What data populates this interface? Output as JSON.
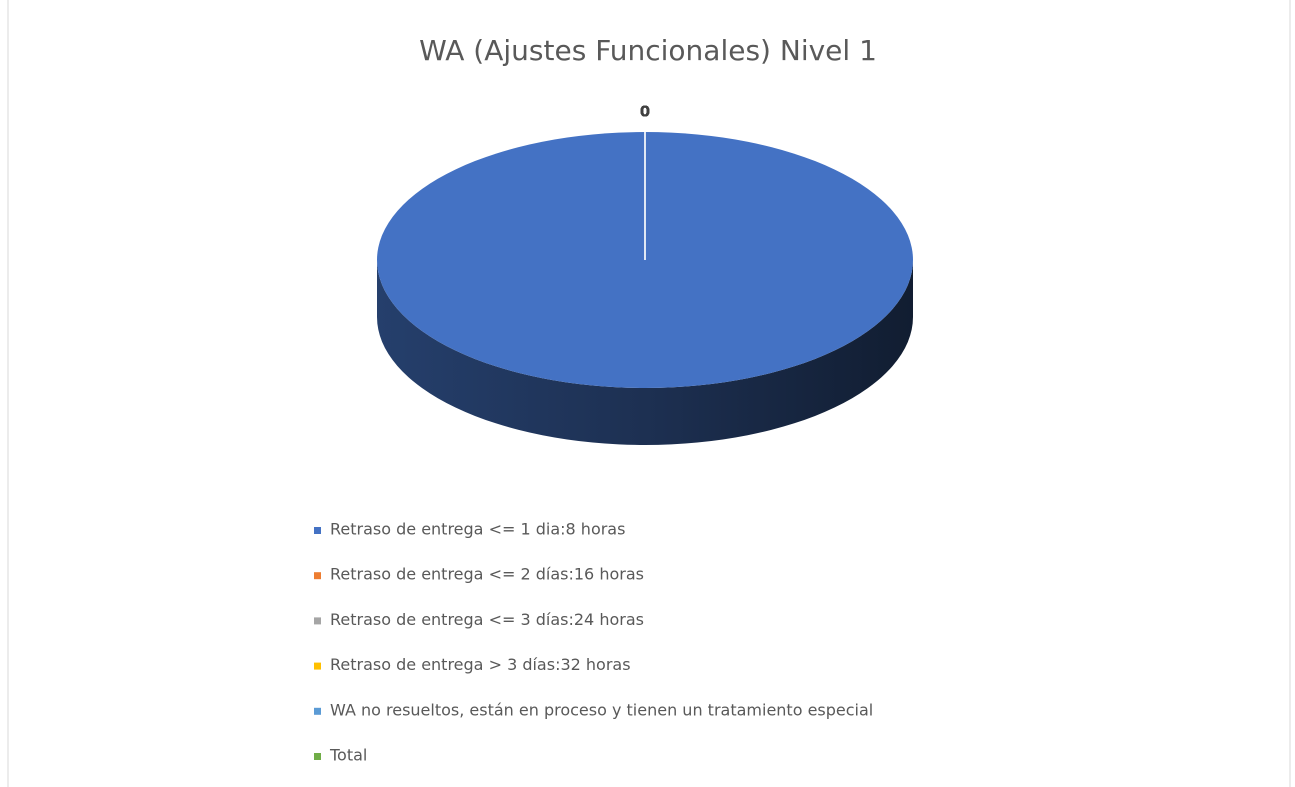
{
  "chart_data": {
    "type": "pie3d",
    "title": "WA (Ajustes Funcionales) Nivel 1",
    "series": [
      {
        "name": " Retraso de entrega <= 1 dia:8 horas",
        "color": "#4472c4",
        "values": [
          100
        ]
      },
      {
        "name": "Retraso de entrega <= 2 días:16 horas",
        "color": "#ed7d31",
        "values": [
          0
        ]
      },
      {
        "name": "Retraso de entrega <= 3 días:24 horas",
        "color": "#a5a5a5",
        "values": [
          0
        ]
      },
      {
        "name": "Retraso de entrega > 3 días:32 horas",
        "color": "#ffc000",
        "values": [
          0
        ]
      },
      {
        "name": "WA no resueltos, están en proceso y tienen un tratamiento especial",
        "color": "#5b9bd5",
        "values": [
          0
        ]
      },
      {
        "name": "Total",
        "color": "#70ad47",
        "values": [
          0
        ]
      }
    ],
    "legend": "bottom"
  }
}
